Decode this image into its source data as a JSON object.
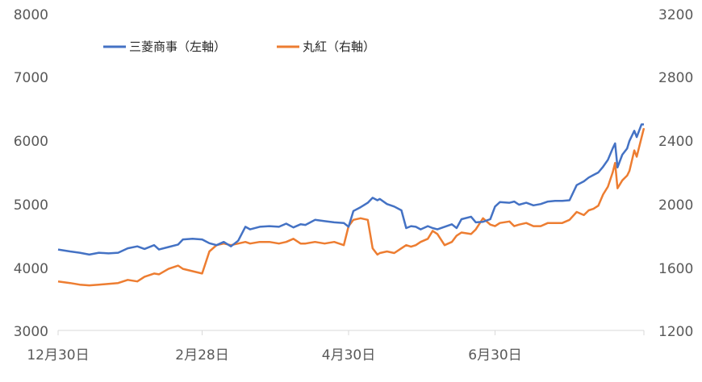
{
  "chart_data": {
    "type": "line",
    "title": "",
    "grid": false,
    "legend_position": "top-left",
    "x_tick_labels": [
      "12月30日",
      "2月28日",
      "4月30日",
      "6月30日"
    ],
    "x_tick_dates": [
      "2022-12-30",
      "2023-02-28",
      "2023-04-30",
      "2023-06-30"
    ],
    "x_range": [
      "2022-12-30",
      "2023-08-31"
    ],
    "y_left": {
      "ticks": [
        "3000",
        "4000",
        "5000",
        "6000",
        "7000",
        "8000"
      ],
      "range": [
        3000,
        8000
      ]
    },
    "y_right": {
      "ticks": [
        "1200",
        "1600",
        "2000",
        "2400",
        "2800",
        "3200"
      ],
      "range": [
        1200,
        3200
      ]
    },
    "series": [
      {
        "name": "三菱商事（左軸）",
        "axis": "left",
        "color": "#4472C4",
        "points": [
          [
            "2022-12-30",
            4280
          ],
          [
            "2023-01-04",
            4250
          ],
          [
            "2023-01-08",
            4230
          ],
          [
            "2023-01-12",
            4200
          ],
          [
            "2023-01-16",
            4230
          ],
          [
            "2023-01-20",
            4220
          ],
          [
            "2023-01-24",
            4230
          ],
          [
            "2023-01-28",
            4300
          ],
          [
            "2023-02-01",
            4330
          ],
          [
            "2023-02-04",
            4290
          ],
          [
            "2023-02-08",
            4350
          ],
          [
            "2023-02-10",
            4280
          ],
          [
            "2023-02-14",
            4320
          ],
          [
            "2023-02-18",
            4360
          ],
          [
            "2023-02-20",
            4440
          ],
          [
            "2023-02-24",
            4450
          ],
          [
            "2023-02-28",
            4440
          ],
          [
            "2023-03-03",
            4380
          ],
          [
            "2023-03-06",
            4350
          ],
          [
            "2023-03-09",
            4400
          ],
          [
            "2023-03-12",
            4330
          ],
          [
            "2023-03-15",
            4420
          ],
          [
            "2023-03-18",
            4640
          ],
          [
            "2023-03-20",
            4600
          ],
          [
            "2023-03-24",
            4640
          ],
          [
            "2023-03-28",
            4650
          ],
          [
            "2023-04-01",
            4640
          ],
          [
            "2023-04-04",
            4690
          ],
          [
            "2023-04-07",
            4630
          ],
          [
            "2023-04-10",
            4680
          ],
          [
            "2023-04-12",
            4670
          ],
          [
            "2023-04-16",
            4750
          ],
          [
            "2023-04-20",
            4730
          ],
          [
            "2023-04-24",
            4710
          ],
          [
            "2023-04-28",
            4700
          ],
          [
            "2023-04-30",
            4640
          ],
          [
            "2023-05-02",
            4890
          ],
          [
            "2023-05-05",
            4950
          ],
          [
            "2023-05-08",
            5020
          ],
          [
            "2023-05-10",
            5100
          ],
          [
            "2023-05-12",
            5060
          ],
          [
            "2023-05-13",
            5080
          ],
          [
            "2023-05-16",
            5000
          ],
          [
            "2023-05-19",
            4960
          ],
          [
            "2023-05-22",
            4900
          ],
          [
            "2023-05-24",
            4620
          ],
          [
            "2023-05-26",
            4650
          ],
          [
            "2023-05-28",
            4640
          ],
          [
            "2023-05-30",
            4600
          ],
          [
            "2023-06-02",
            4650
          ],
          [
            "2023-06-04",
            4620
          ],
          [
            "2023-06-06",
            4600
          ],
          [
            "2023-06-09",
            4640
          ],
          [
            "2023-06-12",
            4680
          ],
          [
            "2023-06-14",
            4620
          ],
          [
            "2023-06-16",
            4760
          ],
          [
            "2023-06-20",
            4800
          ],
          [
            "2023-06-22",
            4710
          ],
          [
            "2023-06-25",
            4720
          ],
          [
            "2023-06-28",
            4760
          ],
          [
            "2023-06-30",
            4960
          ],
          [
            "2023-07-02",
            5030
          ],
          [
            "2023-07-06",
            5020
          ],
          [
            "2023-07-08",
            5040
          ],
          [
            "2023-07-10",
            4990
          ],
          [
            "2023-07-13",
            5020
          ],
          [
            "2023-07-16",
            4980
          ],
          [
            "2023-07-19",
            5000
          ],
          [
            "2023-07-22",
            5040
          ],
          [
            "2023-07-25",
            5050
          ],
          [
            "2023-07-28",
            5050
          ],
          [
            "2023-07-31",
            5060
          ],
          [
            "2023-08-03",
            5300
          ],
          [
            "2023-08-06",
            5360
          ],
          [
            "2023-08-08",
            5420
          ],
          [
            "2023-08-10",
            5460
          ],
          [
            "2023-08-12",
            5500
          ],
          [
            "2023-08-14",
            5590
          ],
          [
            "2023-08-16",
            5700
          ],
          [
            "2023-08-18",
            5880
          ],
          [
            "2023-08-19",
            5960
          ],
          [
            "2023-08-20",
            5580
          ],
          [
            "2023-08-22",
            5780
          ],
          [
            "2023-08-24",
            5880
          ],
          [
            "2023-08-25",
            6000
          ],
          [
            "2023-08-27",
            6160
          ],
          [
            "2023-08-28",
            6060
          ],
          [
            "2023-08-30",
            6260
          ],
          [
            "2023-08-31",
            6260
          ]
        ]
      },
      {
        "name": "丸紅（右軸）",
        "axis": "right",
        "color": "#ED7D31",
        "points": [
          [
            "2022-12-30",
            1510
          ],
          [
            "2023-01-04",
            1500
          ],
          [
            "2023-01-08",
            1490
          ],
          [
            "2023-01-12",
            1485
          ],
          [
            "2023-01-16",
            1490
          ],
          [
            "2023-01-20",
            1495
          ],
          [
            "2023-01-24",
            1500
          ],
          [
            "2023-01-28",
            1520
          ],
          [
            "2023-02-01",
            1510
          ],
          [
            "2023-02-04",
            1540
          ],
          [
            "2023-02-08",
            1560
          ],
          [
            "2023-02-10",
            1555
          ],
          [
            "2023-02-14",
            1590
          ],
          [
            "2023-02-18",
            1610
          ],
          [
            "2023-02-20",
            1590
          ],
          [
            "2023-02-24",
            1575
          ],
          [
            "2023-02-28",
            1560
          ],
          [
            "2023-03-03",
            1700
          ],
          [
            "2023-03-06",
            1740
          ],
          [
            "2023-03-09",
            1750
          ],
          [
            "2023-03-12",
            1740
          ],
          [
            "2023-03-15",
            1750
          ],
          [
            "2023-03-18",
            1760
          ],
          [
            "2023-03-20",
            1750
          ],
          [
            "2023-03-24",
            1760
          ],
          [
            "2023-03-28",
            1760
          ],
          [
            "2023-04-01",
            1750
          ],
          [
            "2023-04-04",
            1760
          ],
          [
            "2023-04-07",
            1780
          ],
          [
            "2023-04-10",
            1750
          ],
          [
            "2023-04-12",
            1750
          ],
          [
            "2023-04-16",
            1760
          ],
          [
            "2023-04-20",
            1750
          ],
          [
            "2023-04-24",
            1760
          ],
          [
            "2023-04-28",
            1740
          ],
          [
            "2023-04-30",
            1860
          ],
          [
            "2023-05-02",
            1900
          ],
          [
            "2023-05-05",
            1910
          ],
          [
            "2023-05-08",
            1900
          ],
          [
            "2023-05-10",
            1720
          ],
          [
            "2023-05-12",
            1680
          ],
          [
            "2023-05-13",
            1690
          ],
          [
            "2023-05-16",
            1700
          ],
          [
            "2023-05-19",
            1690
          ],
          [
            "2023-05-22",
            1720
          ],
          [
            "2023-05-24",
            1740
          ],
          [
            "2023-05-26",
            1730
          ],
          [
            "2023-05-28",
            1740
          ],
          [
            "2023-05-30",
            1760
          ],
          [
            "2023-06-02",
            1780
          ],
          [
            "2023-06-04",
            1830
          ],
          [
            "2023-06-06",
            1810
          ],
          [
            "2023-06-09",
            1740
          ],
          [
            "2023-06-12",
            1760
          ],
          [
            "2023-06-14",
            1800
          ],
          [
            "2023-06-16",
            1820
          ],
          [
            "2023-06-20",
            1810
          ],
          [
            "2023-06-22",
            1840
          ],
          [
            "2023-06-25",
            1910
          ],
          [
            "2023-06-28",
            1870
          ],
          [
            "2023-06-30",
            1860
          ],
          [
            "2023-07-02",
            1880
          ],
          [
            "2023-07-06",
            1890
          ],
          [
            "2023-07-08",
            1860
          ],
          [
            "2023-07-10",
            1870
          ],
          [
            "2023-07-13",
            1880
          ],
          [
            "2023-07-16",
            1860
          ],
          [
            "2023-07-19",
            1860
          ],
          [
            "2023-07-22",
            1880
          ],
          [
            "2023-07-25",
            1880
          ],
          [
            "2023-07-28",
            1880
          ],
          [
            "2023-07-31",
            1900
          ],
          [
            "2023-08-03",
            1950
          ],
          [
            "2023-08-06",
            1930
          ],
          [
            "2023-08-08",
            1960
          ],
          [
            "2023-08-10",
            1970
          ],
          [
            "2023-08-12",
            1990
          ],
          [
            "2023-08-14",
            2060
          ],
          [
            "2023-08-16",
            2110
          ],
          [
            "2023-08-18",
            2200
          ],
          [
            "2023-08-19",
            2260
          ],
          [
            "2023-08-20",
            2100
          ],
          [
            "2023-08-22",
            2150
          ],
          [
            "2023-08-24",
            2180
          ],
          [
            "2023-08-25",
            2210
          ],
          [
            "2023-08-27",
            2340
          ],
          [
            "2023-08-28",
            2300
          ],
          [
            "2023-08-30",
            2420
          ],
          [
            "2023-08-31",
            2480
          ]
        ]
      }
    ]
  }
}
